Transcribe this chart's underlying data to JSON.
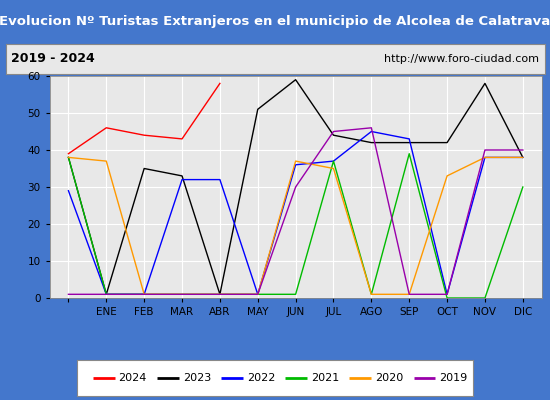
{
  "title": "Evolucion Nº Turistas Extranjeros en el municipio de Alcolea de Calatrava",
  "subtitle_left": "2019 - 2024",
  "subtitle_right": "http://www.foro-ciudad.com",
  "months": [
    "",
    "ENE",
    "FEB",
    "MAR",
    "ABR",
    "MAY",
    "JUN",
    "JUL",
    "AGO",
    "SEP",
    "OCT",
    "NOV",
    "DIC"
  ],
  "ylim": [
    0,
    60
  ],
  "yticks": [
    0,
    10,
    20,
    30,
    40,
    50,
    60
  ],
  "series": {
    "2024": {
      "color": "#ff0000",
      "data": [
        39,
        46,
        44,
        43,
        58,
        null,
        null,
        null,
        null,
        null,
        null,
        null,
        null
      ]
    },
    "2023": {
      "color": "#000000",
      "data": [
        38,
        1,
        35,
        33,
        1,
        51,
        59,
        44,
        42,
        42,
        42,
        58,
        38
      ]
    },
    "2022": {
      "color": "#0000ff",
      "data": [
        29,
        1,
        1,
        32,
        32,
        1,
        36,
        37,
        45,
        43,
        1,
        38,
        38
      ]
    },
    "2021": {
      "color": "#00bb00",
      "data": [
        38,
        1,
        1,
        1,
        1,
        1,
        1,
        37,
        1,
        39,
        0,
        0,
        30
      ]
    },
    "2020": {
      "color": "#ff9900",
      "data": [
        38,
        37,
        1,
        1,
        1,
        1,
        37,
        35,
        1,
        1,
        33,
        38,
        38
      ]
    },
    "2019": {
      "color": "#9900aa",
      "data": [
        1,
        1,
        1,
        1,
        1,
        1,
        30,
        45,
        46,
        1,
        1,
        40,
        40
      ]
    }
  },
  "legend_order": [
    "2024",
    "2023",
    "2022",
    "2021",
    "2020",
    "2019"
  ],
  "title_bg": "#4477cc",
  "title_color": "#ffffff",
  "subtitle_bg": "#e8e8e8",
  "plot_bg": "#e8e8e8",
  "grid_color": "#ffffff",
  "outer_bg": "#4477cc"
}
